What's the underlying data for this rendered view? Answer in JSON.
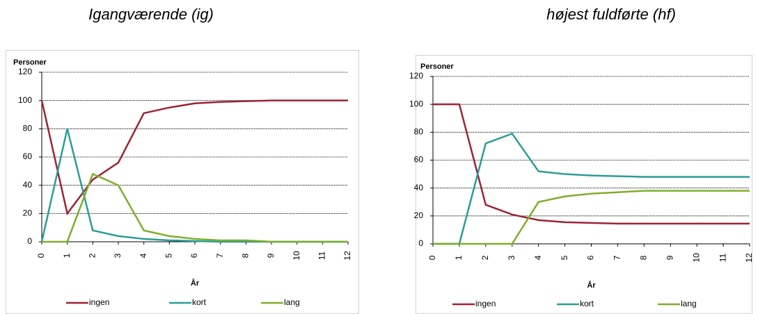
{
  "chart_data": [
    {
      "type": "line",
      "title": "Igangværende (ig)",
      "y_label": "Personer",
      "x_label": "År",
      "x": [
        0,
        1,
        2,
        3,
        4,
        5,
        6,
        7,
        8,
        9,
        10,
        11,
        12
      ],
      "xlim": [
        0,
        12
      ],
      "xticks": [
        0,
        1,
        2,
        3,
        4,
        5,
        6,
        7,
        8,
        9,
        10,
        11,
        12
      ],
      "ylim": [
        0,
        120
      ],
      "yticks": [
        0,
        20,
        40,
        60,
        80,
        100,
        120
      ],
      "grid": true,
      "legend": "bottom",
      "series": [
        {
          "name": "ingen",
          "color": "#9b2335",
          "values": [
            100,
            20,
            44,
            56,
            91,
            95,
            98,
            99,
            99.5,
            100,
            100,
            100,
            100
          ]
        },
        {
          "name": "kort",
          "color": "#2a9d96",
          "values": [
            0,
            80,
            8,
            4,
            2,
            1,
            0.5,
            0,
            0,
            0,
            0,
            0,
            0
          ]
        },
        {
          "name": "lang",
          "color": "#7fae2a",
          "values": [
            0,
            0,
            48,
            40,
            8,
            4,
            2,
            1,
            1,
            0,
            0,
            0,
            0
          ]
        }
      ]
    },
    {
      "type": "line",
      "title": "højest fuldførte (hf)",
      "y_label": "Personer",
      "x_label": "År",
      "x": [
        0,
        1,
        2,
        3,
        4,
        5,
        6,
        7,
        8,
        9,
        10,
        11,
        12
      ],
      "xlim": [
        0,
        12
      ],
      "xticks": [
        0,
        1,
        2,
        3,
        4,
        5,
        6,
        7,
        8,
        9,
        10,
        11,
        12
      ],
      "ylim": [
        0,
        120
      ],
      "yticks": [
        0,
        20,
        40,
        60,
        80,
        100,
        120
      ],
      "grid": true,
      "legend": "bottom",
      "series": [
        {
          "name": "ingen",
          "color": "#9b2335",
          "values": [
            100,
            100,
            28,
            21,
            17,
            15.5,
            15,
            14.5,
            14.5,
            14.5,
            14.5,
            14.5,
            14.5
          ]
        },
        {
          "name": "kort",
          "color": "#2a9d96",
          "values": [
            0,
            0,
            72,
            79,
            52,
            50,
            49,
            48.5,
            48,
            48,
            48,
            48,
            48
          ]
        },
        {
          "name": "lang",
          "color": "#7fae2a",
          "values": [
            0,
            0,
            0,
            0,
            30,
            34,
            36,
            37,
            38,
            38,
            38,
            38,
            38
          ]
        }
      ]
    }
  ]
}
